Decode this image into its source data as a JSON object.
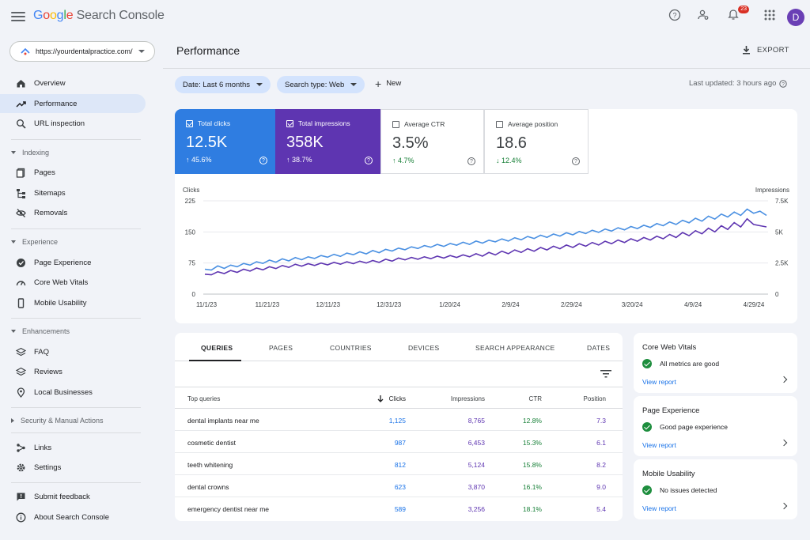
{
  "header": {
    "logo_google": [
      "G",
      "o",
      "o",
      "g",
      "l",
      "e"
    ],
    "logo_rest": "Search Console",
    "notifications_count": "23",
    "avatar_letter": "D",
    "icons": [
      "menu-icon",
      "help-icon",
      "manage-users-icon",
      "bell-icon",
      "apps-icon"
    ]
  },
  "sidebar": {
    "property": "https://yourdentalpractice.com/",
    "items": {
      "overview": "Overview",
      "performance": "Performance",
      "url_inspection": "URL inspection",
      "indexing": "Indexing",
      "pages": "Pages",
      "sitemaps": "Sitemaps",
      "removals": "Removals",
      "experience": "Experience",
      "page_experience": "Page Experience",
      "core_web_vitals": "Core Web Vitals",
      "mobile_usability": "Mobile Usability",
      "enhancements": "Enhancements",
      "faq": "FAQ",
      "reviews": "Reviews",
      "local_businesses": "Local Businesses",
      "security": "Security & Manual Actions",
      "links": "Links",
      "settings": "Settings",
      "submit_feedback": "Submit feedback",
      "about": "About Search Console"
    }
  },
  "main": {
    "title": "Performance",
    "export_label": "EXPORT",
    "filters": {
      "date": "Date: Last 6 months",
      "search_type": "Search type: Web",
      "new": "New"
    },
    "last_updated": "Last updated: 3 hours ago"
  },
  "metrics": [
    {
      "label": "Total clicks",
      "value": "12.5K",
      "change": "↑ 45.6%",
      "checked": true
    },
    {
      "label": "Total impressions",
      "value": "358K",
      "change": "↑ 38.7%",
      "checked": true
    },
    {
      "label": "Average CTR",
      "value": "3.5%",
      "change": "↑ 4.7%",
      "checked": false
    },
    {
      "label": "Average position",
      "value": "18.6",
      "change": "↓ 12.4%",
      "checked": false
    }
  ],
  "chart_data": {
    "type": "line",
    "left_axis_label": "Clicks",
    "right_axis_label": "Impressions",
    "left_ticks": [
      "225",
      "150",
      "75",
      "0"
    ],
    "right_ticks": [
      "7.5K",
      "5K",
      "2.5K",
      "0"
    ],
    "x_ticks": [
      "11/1/23",
      "11/21/23",
      "12/11/23",
      "12/31/23",
      "1/20/24",
      "2/9/24",
      "2/29/24",
      "3/20/24",
      "4/9/24",
      "4/29/24"
    ],
    "left_ylim": [
      0,
      225
    ],
    "right_ylim": [
      0,
      7500
    ],
    "colors": {
      "clicks": "#4a90e2",
      "impressions": "#5e35b1"
    },
    "series": [
      {
        "name": "Clicks",
        "axis": "left",
        "values": [
          60,
          58,
          68,
          62,
          70,
          66,
          74,
          70,
          78,
          74,
          82,
          77,
          85,
          80,
          88,
          83,
          90,
          86,
          93,
          89,
          96,
          91,
          99,
          95,
          102,
          97,
          105,
          100,
          108,
          104,
          111,
          107,
          114,
          110,
          117,
          113,
          120,
          115,
          122,
          118,
          125,
          120,
          128,
          123,
          130,
          126,
          133,
          128,
          136,
          131,
          139,
          134,
          142,
          137,
          145,
          140,
          148,
          143,
          151,
          146,
          154,
          149,
          157,
          152,
          160,
          155,
          163,
          158,
          166,
          161,
          170,
          165,
          174,
          168,
          178,
          172,
          183,
          176,
          188,
          181,
          193,
          186,
          198,
          190,
          205,
          195,
          200,
          190
        ]
      },
      {
        "name": "Impressions",
        "axis": "right",
        "values": [
          1600,
          1550,
          1800,
          1650,
          1900,
          1750,
          2000,
          1850,
          2100,
          1950,
          2200,
          2050,
          2300,
          2150,
          2400,
          2250,
          2450,
          2300,
          2500,
          2350,
          2550,
          2400,
          2600,
          2450,
          2650,
          2500,
          2700,
          2550,
          2800,
          2650,
          2900,
          2750,
          2950,
          2800,
          3000,
          2850,
          3050,
          2900,
          3100,
          2950,
          3150,
          3000,
          3250,
          3050,
          3350,
          3150,
          3450,
          3250,
          3550,
          3350,
          3650,
          3450,
          3750,
          3550,
          3850,
          3650,
          3950,
          3750,
          4050,
          3850,
          4150,
          3950,
          4250,
          4050,
          4350,
          4150,
          4450,
          4250,
          4550,
          4350,
          4650,
          4450,
          4800,
          4550,
          4950,
          4700,
          5100,
          4850,
          5300,
          5000,
          5500,
          5200,
          5750,
          5400,
          6050,
          5600,
          5500,
          5400
        ]
      }
    ]
  },
  "table": {
    "tabs": [
      "QUERIES",
      "PAGES",
      "COUNTRIES",
      "DEVICES",
      "SEARCH APPEARANCE",
      "DATES"
    ],
    "headers": {
      "query": "Top queries",
      "clicks": "Clicks",
      "impressions": "Impressions",
      "ctr": "CTR",
      "position": "Position"
    },
    "rows": [
      {
        "query": "dental implants near me",
        "clicks": "1,125",
        "impressions": "8,765",
        "ctr": "12.8%",
        "position": "7.3"
      },
      {
        "query": "cosmetic dentist",
        "clicks": "987",
        "impressions": "6,453",
        "ctr": "15.3%",
        "position": "6.1"
      },
      {
        "query": "teeth whitening",
        "clicks": "812",
        "impressions": "5,124",
        "ctr": "15.8%",
        "position": "8.2"
      },
      {
        "query": "dental crowns",
        "clicks": "623",
        "impressions": "3,870",
        "ctr": "16.1%",
        "position": "9.0"
      },
      {
        "query": "emergency dentist near me",
        "clicks": "589",
        "impressions": "3,256",
        "ctr": "18.1%",
        "position": "5.4"
      }
    ]
  },
  "side_cards": [
    {
      "title": "Core Web Vitals",
      "status": "All metrics are good",
      "link": "View report"
    },
    {
      "title": "Page Experience",
      "status": "Good page experience",
      "link": "View report"
    },
    {
      "title": "Mobile Usability",
      "status": "No issues detected",
      "link": "View report"
    }
  ]
}
